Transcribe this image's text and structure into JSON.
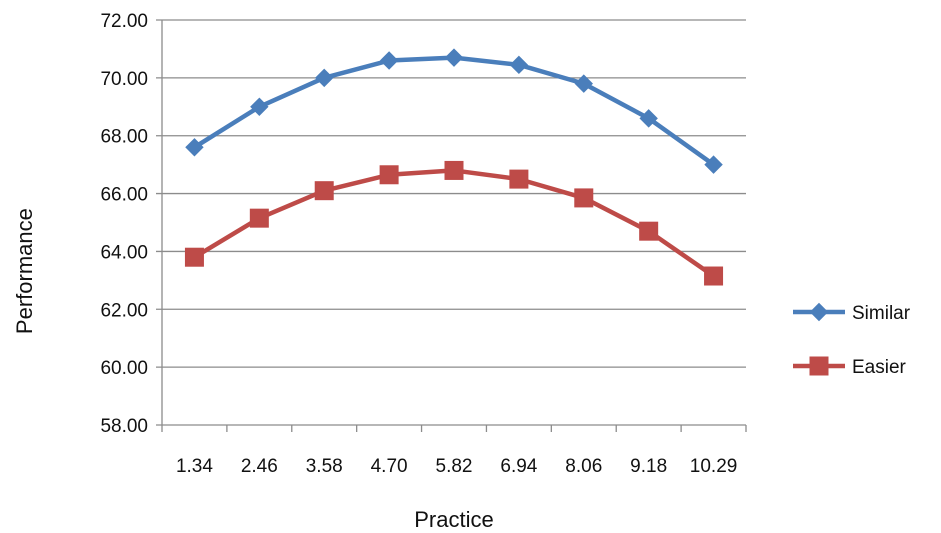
{
  "chart_data": {
    "type": "line",
    "title": "",
    "xlabel": "Practice",
    "ylabel": "Performance",
    "categories": [
      "1.34",
      "2.46",
      "3.58",
      "4.70",
      "5.82",
      "6.94",
      "8.06",
      "9.18",
      "10.29"
    ],
    "ylim": [
      58,
      72
    ],
    "yticks": [
      "58.00",
      "60.00",
      "62.00",
      "64.00",
      "66.00",
      "68.00",
      "70.00",
      "72.00"
    ],
    "grid": "horizontal",
    "legend": "right",
    "series": [
      {
        "name": "Similar",
        "color": "#4a7ebb",
        "marker": "diamond",
        "values": [
          67.6,
          69.0,
          70.0,
          70.6,
          70.7,
          70.45,
          69.8,
          68.6,
          67.0
        ]
      },
      {
        "name": "Easier",
        "color": "#be4b48",
        "marker": "square",
        "values": [
          63.8,
          65.15,
          66.1,
          66.65,
          66.8,
          66.5,
          65.85,
          64.7,
          63.15
        ]
      }
    ]
  }
}
